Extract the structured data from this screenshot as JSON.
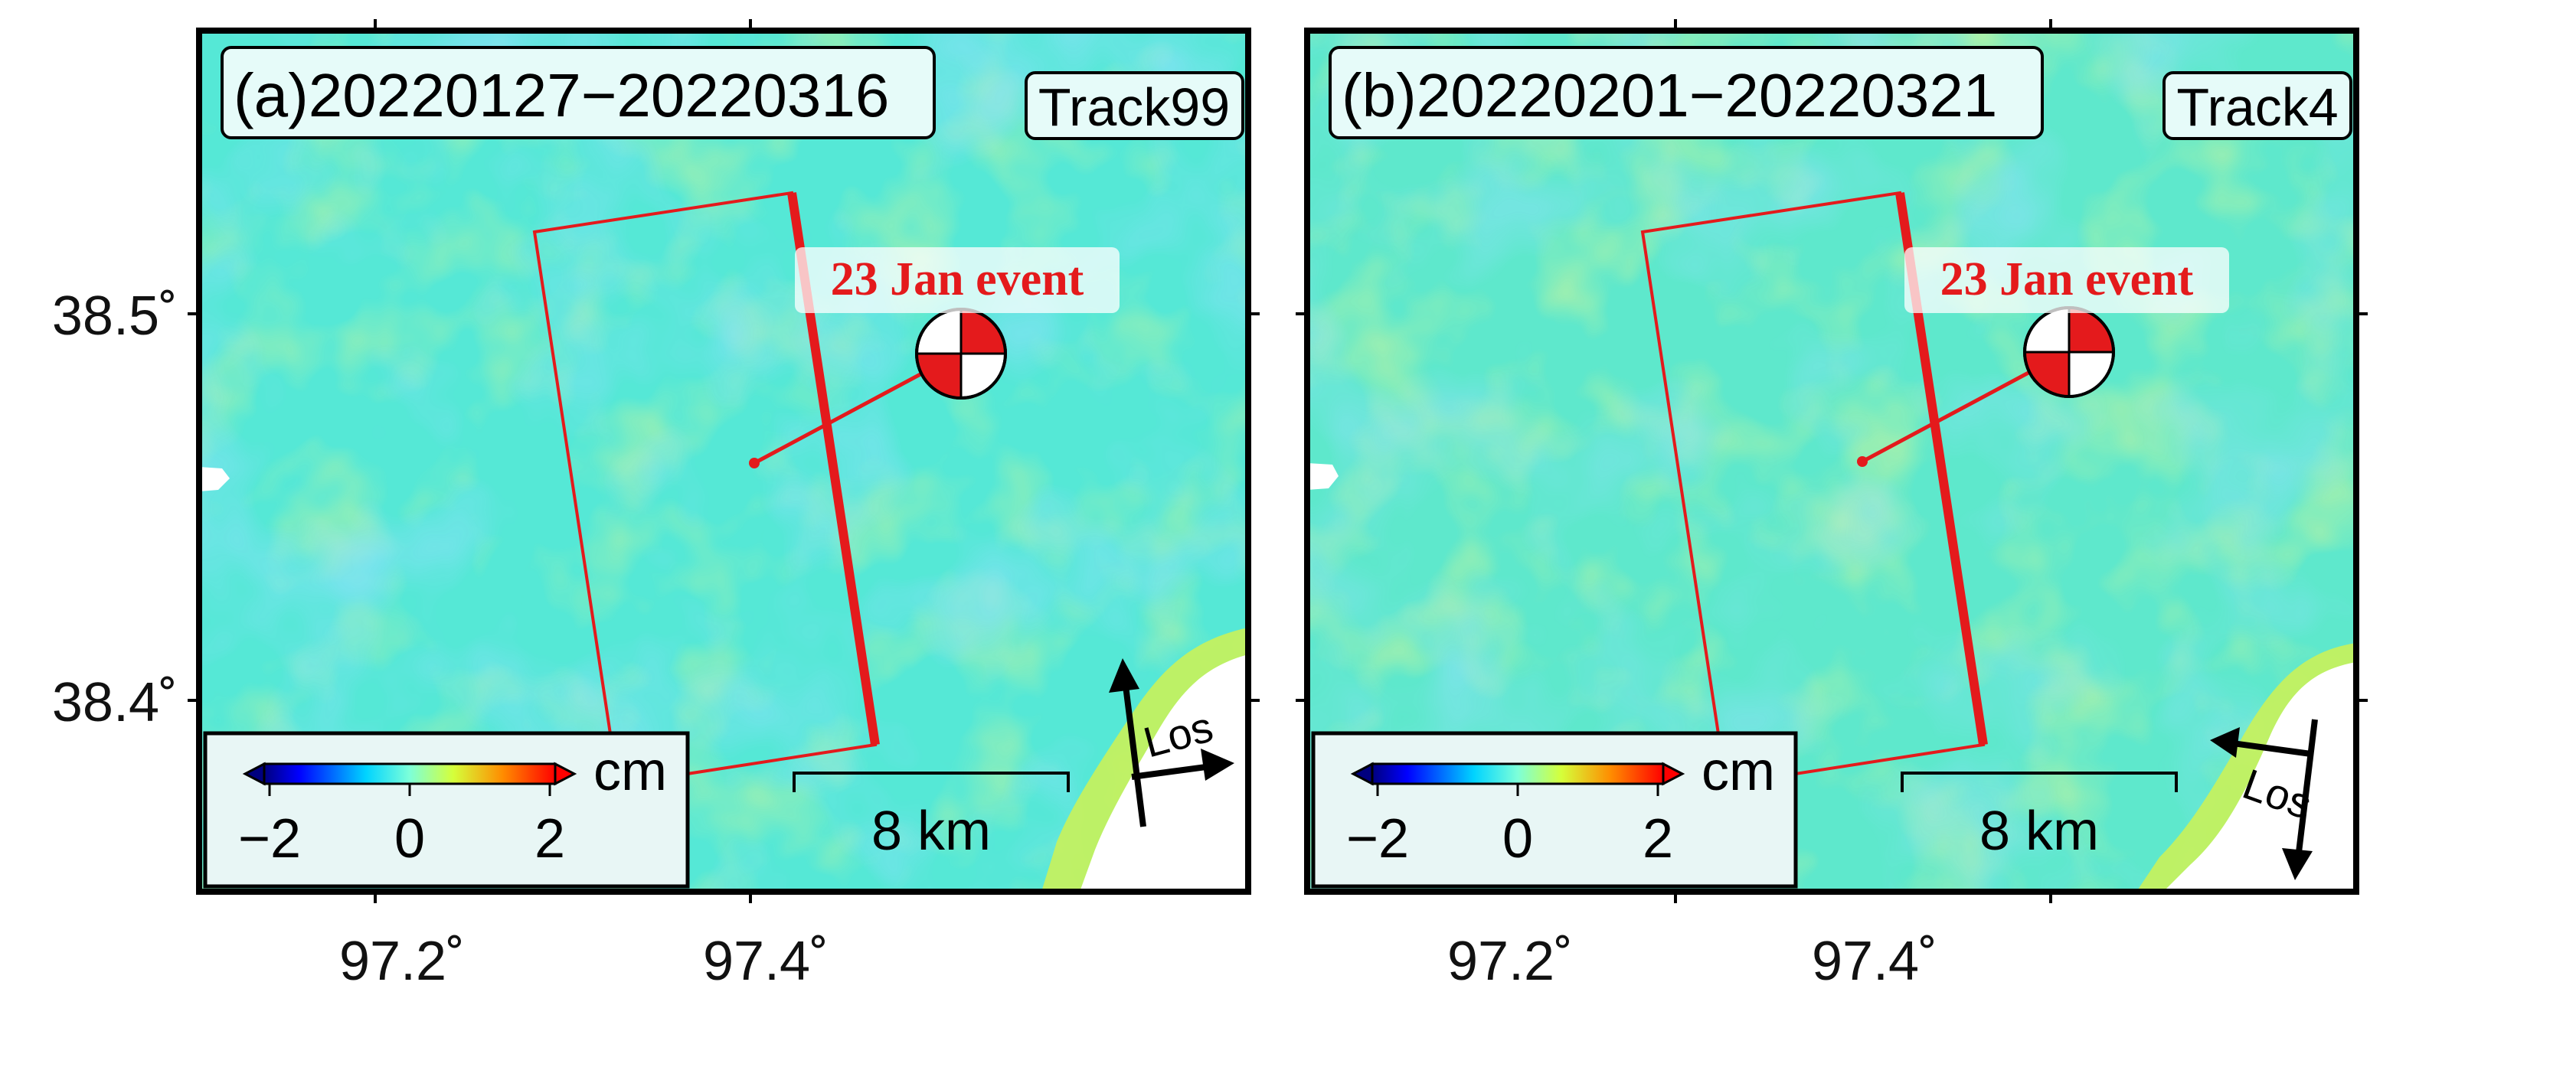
{
  "figure": {
    "y_tick_labels": [
      "38.5˚",
      "38.4˚"
    ],
    "x_tick_labels": [
      "97.2˚",
      "97.4˚"
    ],
    "colors": {
      "deformation_background": "#4fe6d8",
      "fault_outline": "#e41a1c",
      "event_label": "#e41a1c",
      "no_data": "#ffffff"
    }
  },
  "panels": [
    {
      "id": "a",
      "title": "(a)20220127−20220316",
      "track": "Track99",
      "event_label": "23 Jan event",
      "colorbar": {
        "unit": "cm",
        "tick_labels": [
          "−2",
          "0",
          "2"
        ],
        "range_cm": [
          -2,
          2
        ],
        "colormap": "jet"
      },
      "scalebar": {
        "label": "8 km",
        "length_km": 8
      },
      "los": {
        "label": "Los",
        "heading_icon": "north-arrow-los-icon",
        "pass": "ascending"
      }
    },
    {
      "id": "b",
      "title": "(b)20220201−20220321",
      "track": "Track4",
      "event_label": "23 Jan event",
      "colorbar": {
        "unit": "cm",
        "tick_labels": [
          "−2",
          "0",
          "2"
        ],
        "range_cm": [
          -2,
          2
        ],
        "colormap": "jet"
      },
      "scalebar": {
        "label": "8 km",
        "length_km": 8
      },
      "los": {
        "label": "Los",
        "heading_icon": "south-arrow-los-icon",
        "pass": "descending"
      }
    }
  ]
}
